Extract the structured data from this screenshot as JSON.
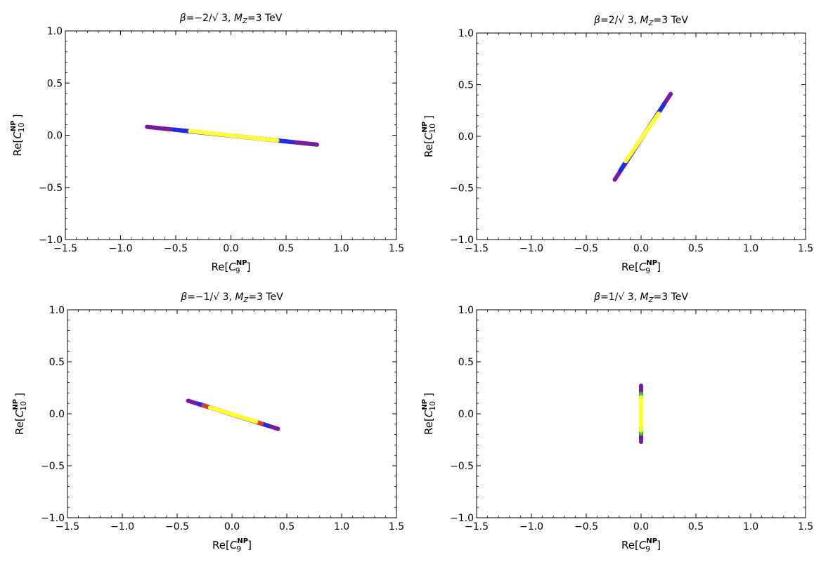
{
  "chart_data": [
    {
      "type": "scatter",
      "title": {
        "beta_value": "−2/√ 3",
        "mass_prefix": "=3 TeV"
      },
      "xlabel": "Re[C9NP]",
      "ylabel": "Re[C10NP]",
      "xlim": [
        -1.5,
        1.5
      ],
      "ylim": [
        -1.0,
        1.0
      ],
      "x_ticks": [
        "−1.5",
        "−1.0",
        "−0.5",
        "0.0",
        "0.5",
        "1.0",
        "1.5"
      ],
      "y_ticks": [
        "−1.0",
        "−0.5",
        "0.0",
        "0.5",
        "1.0"
      ],
      "segments": [
        {
          "color": "#7a1aa0",
          "from": [
            -0.76,
            0.08
          ],
          "to": [
            0.78,
            -0.09
          ]
        },
        {
          "color": "#1f2ce6",
          "from": [
            -0.52,
            0.055
          ],
          "to": [
            0.55,
            -0.065
          ]
        },
        {
          "color": "#ffff33",
          "from": [
            -0.37,
            0.04
          ],
          "to": [
            0.42,
            -0.05
          ]
        }
      ]
    },
    {
      "type": "scatter",
      "title": {
        "beta_value": "2/√ 3",
        "mass_prefix": "=3 TeV"
      },
      "xlabel": "Re[C9NP]",
      "ylabel": "Re[C10NP]",
      "xlim": [
        -1.5,
        1.5
      ],
      "ylim": [
        -1.0,
        1.0
      ],
      "x_ticks": [
        "−1.5",
        "−1.0",
        "−0.5",
        "0.0",
        "0.5",
        "1.0",
        "1.5"
      ],
      "y_ticks": [
        "−1.0",
        "−0.5",
        "0.0",
        "0.5",
        "1.0"
      ],
      "segments": [
        {
          "color": "#7a1aa0",
          "from": [
            -0.24,
            -0.42
          ],
          "to": [
            0.27,
            0.41
          ]
        },
        {
          "color": "#1f2ce6",
          "from": [
            -0.19,
            -0.33
          ],
          "to": [
            0.21,
            0.31
          ]
        },
        {
          "color": "#ffff33",
          "from": [
            -0.14,
            -0.24
          ],
          "to": [
            0.16,
            0.22
          ]
        }
      ]
    },
    {
      "type": "scatter",
      "title": {
        "beta_value": "−1/√ 3",
        "mass_prefix": "=3 TeV"
      },
      "xlabel": "Re[C9NP]",
      "ylabel": "Re[C10NP]",
      "xlim": [
        -1.5,
        1.5
      ],
      "ylim": [
        -1.0,
        1.0
      ],
      "x_ticks": [
        "−1.5",
        "−1.0",
        "−0.5",
        "0.0",
        "0.5",
        "1.0",
        "1.5"
      ],
      "y_ticks": [
        "−1.0",
        "−0.5",
        "0.0",
        "0.5",
        "1.0"
      ],
      "segments": [
        {
          "color": "#7a1aa0",
          "from": [
            -0.4,
            0.125
          ],
          "to": [
            0.42,
            -0.145
          ]
        },
        {
          "color": "#1f2ce6",
          "from": [
            -0.3,
            0.095
          ],
          "to": [
            0.33,
            -0.115
          ]
        },
        {
          "color": "#e03a2a",
          "from": [
            -0.26,
            0.08
          ],
          "to": [
            0.27,
            -0.095
          ]
        },
        {
          "color": "#ffff33",
          "from": [
            -0.2,
            0.06
          ],
          "to": [
            0.22,
            -0.075
          ]
        }
      ]
    },
    {
      "type": "scatter",
      "title": {
        "beta_value": "1/√ 3",
        "mass_prefix": "=3 TeV"
      },
      "xlabel": "Re[C9NP]",
      "ylabel": "Re[C10NP]",
      "xlim": [
        -1.5,
        1.5
      ],
      "ylim": [
        -1.0,
        1.0
      ],
      "x_ticks": [
        "−1.5",
        "−1.0",
        "−0.5",
        "0.0",
        "0.5",
        "1.0",
        "1.5"
      ],
      "y_ticks": [
        "−1.0",
        "−0.5",
        "0.0",
        "0.5",
        "1.0"
      ],
      "segments": [
        {
          "color": "#7a1aa0",
          "from": [
            0.0,
            -0.27
          ],
          "to": [
            0.0,
            0.27
          ]
        },
        {
          "color": "#33cc33",
          "from": [
            0.0,
            -0.19
          ],
          "to": [
            0.0,
            0.19
          ]
        },
        {
          "color": "#ffff33",
          "from": [
            0.0,
            -0.16
          ],
          "to": [
            0.0,
            0.16
          ]
        }
      ]
    }
  ]
}
